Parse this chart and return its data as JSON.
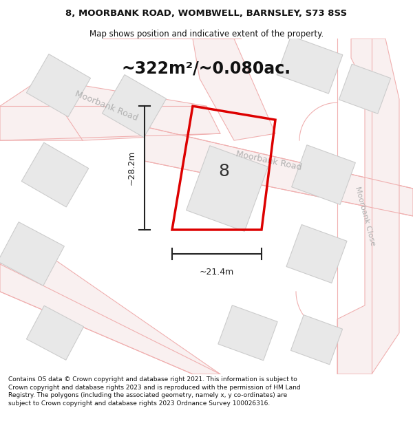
{
  "title_line1": "8, MOORBANK ROAD, WOMBWELL, BARNSLEY, S73 8SS",
  "title_line2": "Map shows position and indicative extent of the property.",
  "area_text": "~322m²/~0.080ac.",
  "label_number": "8",
  "dim_vertical": "~28.2m",
  "dim_horizontal": "~21.4m",
  "footer_text": "Contains OS data © Crown copyright and database right 2021. This information is subject to Crown copyright and database rights 2023 and is reproduced with the permission of HM Land Registry. The polygons (including the associated geometry, namely x, y co-ordinates) are subject to Crown copyright and database rights 2023 Ordnance Survey 100026316.",
  "bg_color": "#ffffff",
  "map_bg": "#ffffff",
  "road_line_color": "#f0b0b0",
  "road_fill_color": "#f9f0f0",
  "building_fill": "#e8e8e8",
  "building_outline": "#cccccc",
  "property_color": "#dd0000",
  "dim_color": "#222222",
  "road_label_color": "#b0b0b0",
  "title_color": "#111111",
  "footer_color": "#111111",
  "area_color": "#111111"
}
